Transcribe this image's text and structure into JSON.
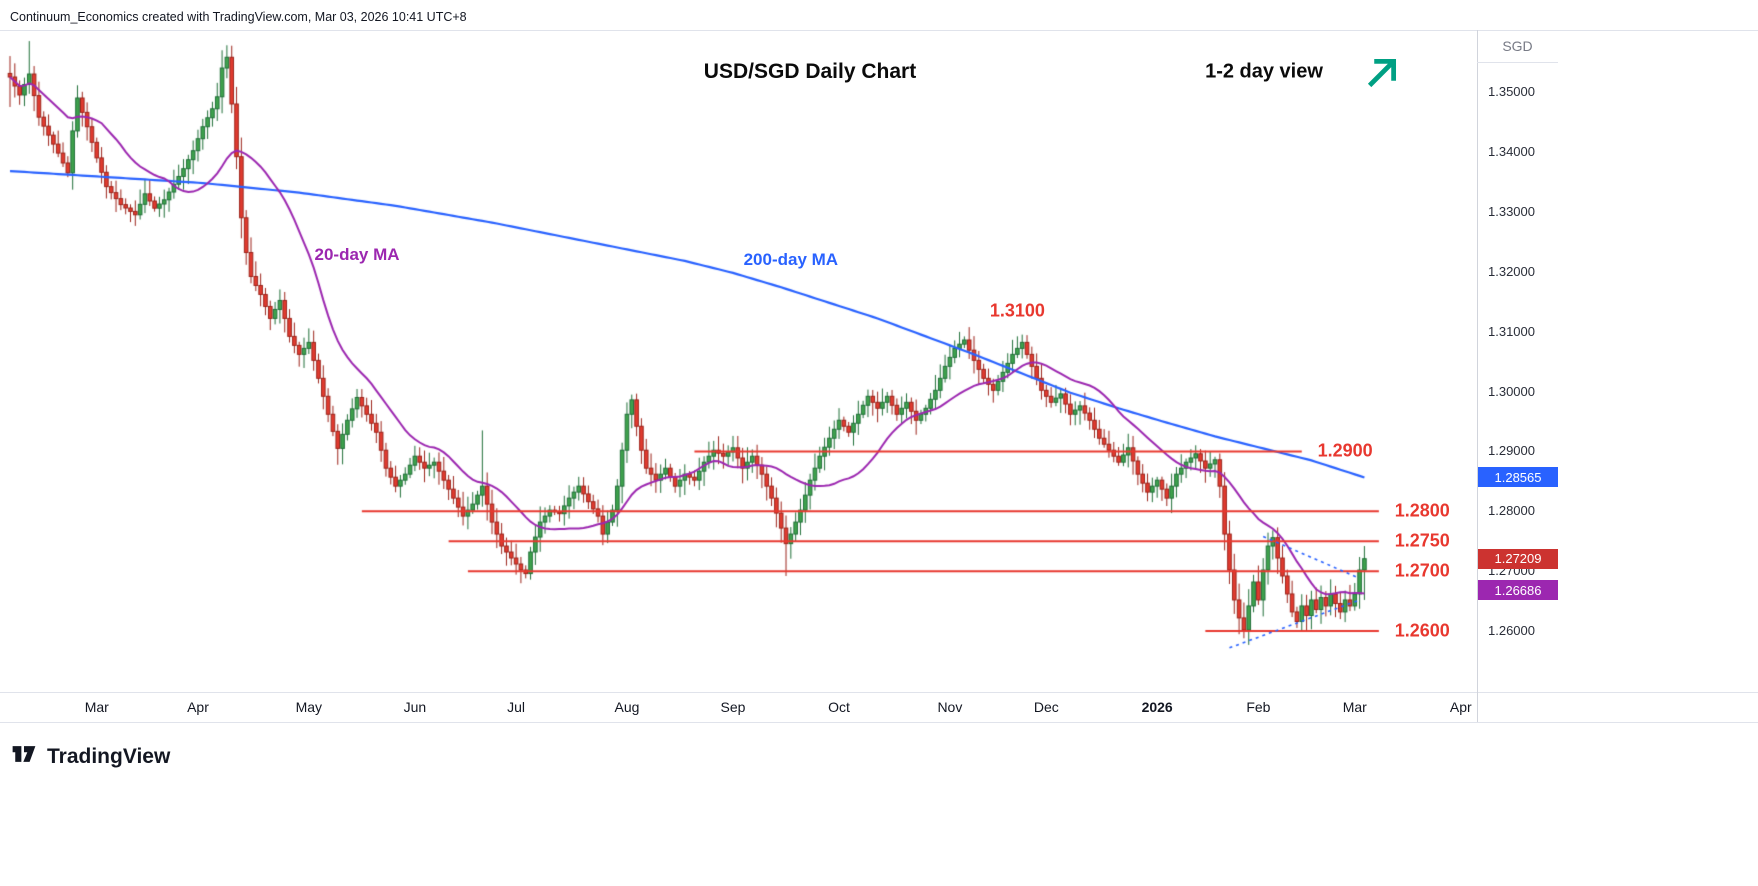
{
  "meta": {
    "attribution": "Continuum_Economics created with TradingView.com, Mar 03, 2026 10:41 UTC+8"
  },
  "header": {
    "title": "USD/SGD Daily Chart",
    "view_note": "1-2 day view",
    "arrow_icon": "trend-up-arrow",
    "arrow_color": "#00A083"
  },
  "logo": {
    "text": "TradingView"
  },
  "price_markers": [
    {
      "value": "1.28565",
      "price": 1.28565,
      "color": "#2962ff",
      "series": "200-day MA"
    },
    {
      "value": "1.27209",
      "price": 1.27209,
      "color": "#cc3330",
      "series": "last price"
    },
    {
      "value": "1.26686",
      "price": 1.26686,
      "color": "#9c27b0",
      "series": "20-day MA"
    }
  ],
  "chart_data": {
    "type": "candlestick",
    "symbol": "USD/SGD",
    "timeframe": "Daily",
    "title": "USD/SGD Daily Chart",
    "grid": false,
    "ylim": [
      1.2498,
      1.3604
    ],
    "y_axis": {
      "currency": "SGD",
      "labels": [
        {
          "text": "1.35000",
          "price": 1.35
        },
        {
          "text": "1.34000",
          "price": 1.34
        },
        {
          "text": "1.33000",
          "price": 1.33
        },
        {
          "text": "1.32000",
          "price": 1.32
        },
        {
          "text": "1.31000",
          "price": 1.31
        },
        {
          "text": "1.30000",
          "price": 1.3
        },
        {
          "text": "1.29000",
          "price": 1.29
        },
        {
          "text": "1.28000",
          "price": 1.28
        },
        {
          "text": "1.27000",
          "price": 1.27
        },
        {
          "text": "1.26000",
          "price": 1.26
        }
      ]
    },
    "x_axis": {
      "labels": [
        {
          "text": "Mar",
          "day": 18
        },
        {
          "text": "Apr",
          "day": 39
        },
        {
          "text": "May",
          "day": 62
        },
        {
          "text": "Jun",
          "day": 84
        },
        {
          "text": "Jul",
          "day": 105
        },
        {
          "text": "Aug",
          "day": 128
        },
        {
          "text": "Sep",
          "day": 150
        },
        {
          "text": "Oct",
          "day": 172
        },
        {
          "text": "Nov",
          "day": 195
        },
        {
          "text": "Dec",
          "day": 215
        },
        {
          "text": "2026",
          "day": 238,
          "bold": true
        },
        {
          "text": "Feb",
          "day": 259
        },
        {
          "text": "Mar",
          "day": 279
        },
        {
          "text": "Apr",
          "day": 301
        }
      ]
    },
    "series": {
      "total_days": 281,
      "close_anchors": [
        [
          0,
          1.3525
        ],
        [
          2,
          1.3495
        ],
        [
          4,
          1.353
        ],
        [
          6,
          1.3458
        ],
        [
          8,
          1.3428
        ],
        [
          10,
          1.3398
        ],
        [
          12,
          1.3365
        ],
        [
          13,
          1.3435
        ],
        [
          14,
          1.349
        ],
        [
          16,
          1.3442
        ],
        [
          18,
          1.339
        ],
        [
          20,
          1.3342
        ],
        [
          23,
          1.3312
        ],
        [
          26,
          1.3295
        ],
        [
          28,
          1.333
        ],
        [
          30,
          1.3306
        ],
        [
          32,
          1.332
        ],
        [
          34,
          1.3346
        ],
        [
          36,
          1.3372
        ],
        [
          38,
          1.3402
        ],
        [
          40,
          1.3442
        ],
        [
          42,
          1.3472
        ],
        [
          43,
          1.3492
        ],
        [
          44,
          1.354
        ],
        [
          45,
          1.3558
        ],
        [
          46,
          1.348
        ],
        [
          47,
          1.3392
        ],
        [
          48,
          1.329
        ],
        [
          49,
          1.3232
        ],
        [
          50,
          1.3192
        ],
        [
          52,
          1.3162
        ],
        [
          54,
          1.3122
        ],
        [
          56,
          1.3152
        ],
        [
          58,
          1.3092
        ],
        [
          60,
          1.3062
        ],
        [
          62,
          1.3082
        ],
        [
          64,
          1.3022
        ],
        [
          66,
          1.2962
        ],
        [
          68,
          1.2905
        ],
        [
          70,
          1.2952
        ],
        [
          72,
          1.299
        ],
        [
          74,
          1.2962
        ],
        [
          76,
          1.2932
        ],
        [
          78,
          1.2872
        ],
        [
          80,
          1.2842
        ],
        [
          82,
          1.2862
        ],
        [
          84,
          1.2892
        ],
        [
          86,
          1.2872
        ],
        [
          88,
          1.2882
        ],
        [
          90,
          1.2852
        ],
        [
          92,
          1.2822
        ],
        [
          94,
          1.2792
        ],
        [
          96,
          1.2812
        ],
        [
          98,
          1.2842
        ],
        [
          100,
          1.2782
        ],
        [
          102,
          1.2742
        ],
        [
          104,
          1.2722
        ],
        [
          106,
          1.2702
        ],
        [
          107,
          1.2696
        ],
        [
          108,
          1.2732
        ],
        [
          110,
          1.2782
        ],
        [
          112,
          1.2802
        ],
        [
          114,
          1.2796
        ],
        [
          116,
          1.2822
        ],
        [
          118,
          1.2842
        ],
        [
          120,
          1.2816
        ],
        [
          122,
          1.2792
        ],
        [
          123,
          1.2762
        ],
        [
          125,
          1.2802
        ],
        [
          126,
          1.2842
        ],
        [
          127,
          1.2902
        ],
        [
          128,
          1.2962
        ],
        [
          129,
          1.2986
        ],
        [
          130,
          1.2942
        ],
        [
          131,
          1.2902
        ],
        [
          132,
          1.2872
        ],
        [
          134,
          1.2852
        ],
        [
          136,
          1.2872
        ],
        [
          138,
          1.2842
        ],
        [
          140,
          1.2862
        ],
        [
          142,
          1.2852
        ],
        [
          144,
          1.2882
        ],
        [
          146,
          1.2902
        ],
        [
          148,
          1.2892
        ],
        [
          150,
          1.2906
        ],
        [
          152,
          1.2872
        ],
        [
          154,
          1.2892
        ],
        [
          156,
          1.2862
        ],
        [
          158,
          1.2822
        ],
        [
          160,
          1.2772
        ],
        [
          161,
          1.2746
        ],
        [
          162,
          1.2762
        ],
        [
          164,
          1.2802
        ],
        [
          166,
          1.2852
        ],
        [
          168,
          1.2892
        ],
        [
          170,
          1.2922
        ],
        [
          172,
          1.2952
        ],
        [
          174,
          1.2932
        ],
        [
          176,
          1.2962
        ],
        [
          178,
          1.2992
        ],
        [
          180,
          1.2972
        ],
        [
          182,
          1.2992
        ],
        [
          184,
          1.2962
        ],
        [
          186,
          1.2982
        ],
        [
          188,
          1.2952
        ],
        [
          190,
          1.2972
        ],
        [
          192,
          1.3002
        ],
        [
          194,
          1.3042
        ],
        [
          196,
          1.3072
        ],
        [
          198,
          1.3086
        ],
        [
          200,
          1.3052
        ],
        [
          202,
          1.3022
        ],
        [
          204,
          1.3002
        ],
        [
          206,
          1.3032
        ],
        [
          208,
          1.3062
        ],
        [
          210,
          1.3082
        ],
        [
          212,
          1.3042
        ],
        [
          214,
          1.3002
        ],
        [
          216,
          1.2982
        ],
        [
          218,
          1.2996
        ],
        [
          220,
          1.2962
        ],
        [
          222,
          1.2976
        ],
        [
          224,
          1.2952
        ],
        [
          226,
          1.2922
        ],
        [
          228,
          1.2902
        ],
        [
          230,
          1.2882
        ],
        [
          232,
          1.2906
        ],
        [
          234,
          1.2862
        ],
        [
          236,
          1.2832
        ],
        [
          238,
          1.2852
        ],
        [
          240,
          1.2822
        ],
        [
          242,
          1.2862
        ],
        [
          244,
          1.2882
        ],
        [
          246,
          1.2896
        ],
        [
          248,
          1.2872
        ],
        [
          250,
          1.2886
        ],
        [
          251,
          1.2842
        ],
        [
          252,
          1.2762
        ],
        [
          253,
          1.2702
        ],
        [
          254,
          1.2652
        ],
        [
          255,
          1.2622
        ],
        [
          256,
          1.2602
        ],
        [
          257,
          1.2642
        ],
        [
          258,
          1.2682
        ],
        [
          259,
          1.2652
        ],
        [
          260,
          1.2702
        ],
        [
          261,
          1.2742
        ],
        [
          262,
          1.2756
        ],
        [
          263,
          1.2722
        ],
        [
          264,
          1.2692
        ],
        [
          265,
          1.2662
        ],
        [
          266,
          1.2632
        ],
        [
          267,
          1.2616
        ],
        [
          268,
          1.2642
        ],
        [
          269,
          1.2626
        ],
        [
          270,
          1.2652
        ],
        [
          271,
          1.2636
        ],
        [
          272,
          1.2656
        ],
        [
          273,
          1.2642
        ],
        [
          274,
          1.2662
        ],
        [
          275,
          1.2646
        ],
        [
          276,
          1.2632
        ],
        [
          277,
          1.2652
        ],
        [
          278,
          1.2642
        ],
        [
          279,
          1.2662
        ],
        [
          280,
          1.2702
        ],
        [
          281,
          1.27209
        ]
      ],
      "wick_overrides": {
        "0": {
          "high": 1.356,
          "low": 1.3475
        },
        "4": {
          "high": 1.3585
        },
        "45": {
          "high": 1.3578
        },
        "98": {
          "high": 1.2935
        },
        "107": {
          "low": 1.2688
        },
        "161": {
          "low": 1.2692
        },
        "198": {
          "high": 1.3092
        },
        "210": {
          "high": 1.3095
        },
        "256": {
          "low": 1.2588
        },
        "281": {
          "high": 1.2742,
          "low": 1.2652
        }
      }
    },
    "ma20": {
      "label": "20-day MA",
      "window": 20,
      "color": "#9c27b0",
      "label_pos": {
        "day": 72,
        "price": 1.3228
      }
    },
    "ma200": {
      "label": "200-day MA",
      "color": "#2962ff",
      "label_pos": {
        "day": 162,
        "price": 1.322
      },
      "anchors": [
        [
          0,
          1.3368
        ],
        [
          20,
          1.3358
        ],
        [
          40,
          1.3348
        ],
        [
          60,
          1.3332
        ],
        [
          80,
          1.331
        ],
        [
          100,
          1.3282
        ],
        [
          110,
          1.3266
        ],
        [
          120,
          1.325
        ],
        [
          130,
          1.3234
        ],
        [
          140,
          1.3218
        ],
        [
          150,
          1.3198
        ],
        [
          160,
          1.3174
        ],
        [
          170,
          1.3148
        ],
        [
          180,
          1.3122
        ],
        [
          190,
          1.3092
        ],
        [
          200,
          1.3062
        ],
        [
          210,
          1.303
        ],
        [
          220,
          1.2998
        ],
        [
          230,
          1.2972
        ],
        [
          240,
          1.2948
        ],
        [
          250,
          1.2925
        ],
        [
          260,
          1.2905
        ],
        [
          270,
          1.2885
        ],
        [
          281,
          1.28565
        ]
      ]
    },
    "levels": [
      {
        "label": "1.2900",
        "value": 1.29,
        "line_start_day": 142,
        "line_end_day": 268,
        "label_day": 277
      },
      {
        "label": "1.2800",
        "value": 1.28,
        "line_start_day": 73,
        "line_end_day": 284,
        "label_day": 293
      },
      {
        "label": "1.2750",
        "value": 1.275,
        "line_start_day": 91,
        "line_end_day": 284,
        "label_day": 293
      },
      {
        "label": "1.2700",
        "value": 1.27,
        "line_start_day": 95,
        "line_end_day": 284,
        "label_day": 293
      },
      {
        "label": "1.2600",
        "value": 1.26,
        "line_start_day": 248,
        "line_end_day": 284,
        "label_day": 293
      }
    ],
    "peak_label": {
      "text": "1.3100",
      "day": 209,
      "price": 1.3134
    },
    "trendline_color": "#2962ff",
    "trendlines": [
      {
        "from": [
          260,
          1.2758
        ],
        "to": [
          280,
          1.2688
        ]
      },
      {
        "from": [
          253,
          1.2572
        ],
        "to": [
          280,
          1.2652
        ]
      }
    ],
    "colors": {
      "up": "#3fa24d",
      "up_border": "#1f6f38",
      "down": "#e13b30",
      "down_border": "#9c231a",
      "level": "#e8382f"
    }
  }
}
